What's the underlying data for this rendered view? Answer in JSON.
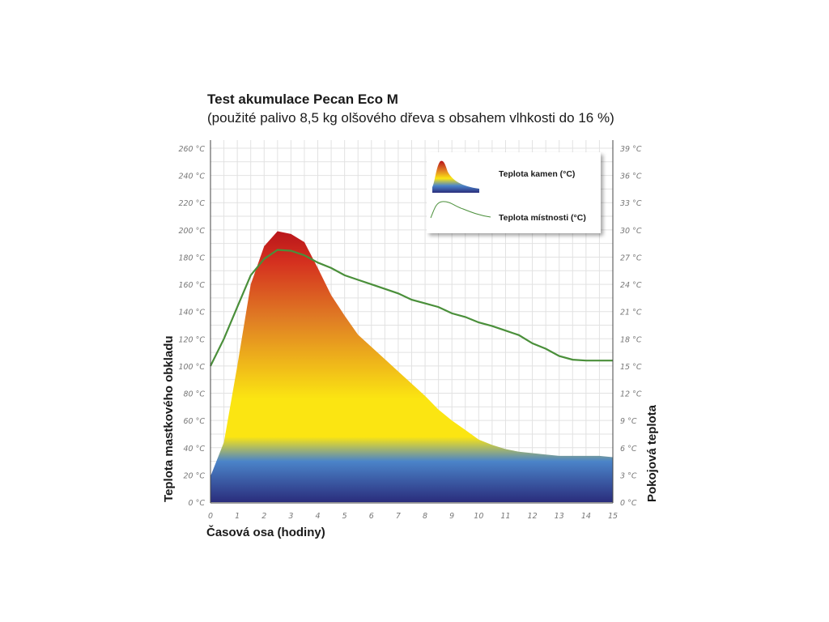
{
  "chart_data": {
    "type": "area",
    "title": "Test akumulace Pecan Eco M",
    "subtitle": "(použité palivo 8,5 kg olšového dřeva s obsahem vlhkosti do 16 %)",
    "xlabel": "Časová osa (hodiny)",
    "ylabel_left": "Teplota mastkového obkladu",
    "ylabel_right": "Pokojová teplota",
    "xlim": [
      0,
      15
    ],
    "ylim_left": [
      0,
      260
    ],
    "ylim_right": [
      0,
      39
    ],
    "x_ticks": [
      "0",
      "1",
      "2",
      "3",
      "4",
      "5",
      "6",
      "7",
      "8",
      "9",
      "10",
      "11",
      "12",
      "13",
      "14",
      "15"
    ],
    "y_left_ticks": [
      "0 °C",
      "20 °C",
      "40 °C",
      "60 °C",
      "80 °C",
      "100 °C",
      "120 °C",
      "140 °C",
      "160 °C",
      "180 °C",
      "200 °C",
      "220 °C",
      "240 °C",
      "260 °C"
    ],
    "y_right_ticks": [
      "0 °C",
      "3 °C",
      "6 °C",
      "9 °C",
      "12 °C",
      "15 °C",
      "18 °C",
      "21 °C",
      "24 °C",
      "27 °C",
      "30 °C",
      "33 °C",
      "36 °C",
      "39 °C"
    ],
    "grid": true,
    "legend_position": "top-right",
    "series": [
      {
        "name": "Teplota kamen (°C)",
        "axis": "left",
        "x": [
          0,
          0.5,
          1.0,
          1.5,
          2.0,
          2.5,
          3.0,
          3.5,
          4.0,
          4.5,
          5.0,
          5.5,
          6.0,
          6.5,
          7.0,
          7.5,
          8.0,
          8.5,
          9.0,
          9.5,
          10.0,
          10.5,
          11.0,
          11.5,
          12.0,
          12.5,
          13.0,
          13.5,
          14.0,
          14.5,
          15.0
        ],
        "values": [
          19,
          44,
          100,
          160,
          188,
          199,
          197,
          191,
          172,
          152,
          137,
          123,
          114,
          105,
          96,
          87,
          78,
          68,
          60,
          53,
          46,
          42,
          39,
          37,
          36,
          35,
          34,
          34,
          34,
          34,
          33
        ]
      },
      {
        "name": "Teplota místnosti (°C)",
        "axis": "right",
        "x": [
          0,
          0.5,
          1.0,
          1.5,
          2.0,
          2.5,
          3.0,
          3.5,
          4.0,
          4.5,
          5.0,
          5.5,
          6.0,
          6.5,
          7.0,
          7.5,
          8.0,
          8.5,
          9.0,
          9.5,
          10.0,
          10.5,
          11.0,
          11.5,
          12.0,
          12.5,
          13.0,
          13.5,
          14.0,
          14.5,
          15.0
        ],
        "values": [
          15,
          18,
          21.5,
          25,
          26.8,
          27.8,
          27.7,
          27.2,
          26.4,
          25.8,
          25,
          24.5,
          24,
          23.5,
          23,
          22.3,
          21.9,
          21.5,
          20.8,
          20.4,
          19.8,
          19.4,
          18.9,
          18.4,
          17.5,
          16.9,
          16.1,
          15.7,
          15.6,
          15.6,
          15.6
        ]
      }
    ],
    "colors": {
      "gradient_top": "#b8141a",
      "gradient_red": "#d5311f",
      "gradient_orange": "#e07e24",
      "gradient_yellow": "#fbe512",
      "gradient_blue": "#4b84c9",
      "gradient_bottom": "#2a2d7c",
      "room_line": "#4a8f3a",
      "grid": "#e2e2e2"
    }
  }
}
